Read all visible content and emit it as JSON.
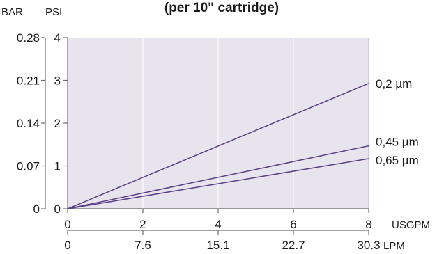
{
  "chart_data": {
    "type": "line",
    "title": "(per 10\" cartridge)",
    "x": [
      0,
      8
    ],
    "xlim": [
      0,
      8
    ],
    "ylim": [
      0,
      4
    ],
    "grid": true,
    "x_axis_primary": {
      "label": "USGPM",
      "ticks": [
        0,
        2,
        4,
        6,
        8
      ],
      "tick_labels": [
        "0",
        "2",
        "4",
        "6",
        "8"
      ]
    },
    "x_axis_secondary": {
      "label": "LPM",
      "tick_labels": [
        "0",
        "7.6",
        "15.1",
        "22.7",
        "30.3"
      ]
    },
    "y_axis_primary": {
      "label": "PSI",
      "ticks": [
        0,
        1,
        2,
        3,
        4
      ],
      "tick_labels": [
        "0",
        "1",
        "2",
        "3",
        "4"
      ]
    },
    "y_axis_secondary": {
      "label": "BAR",
      "tick_labels": [
        "0",
        "0.07",
        "0.14",
        "0.21",
        "0.28"
      ]
    },
    "series": [
      {
        "name": "0,2 µm",
        "x": [
          0,
          8
        ],
        "values": [
          0,
          2.93
        ]
      },
      {
        "name": "0,45 µm",
        "x": [
          0,
          8
        ],
        "values": [
          0,
          1.47
        ]
      },
      {
        "name": "0,65 µm",
        "x": [
          0,
          8
        ],
        "values": [
          0,
          1.17
        ]
      }
    ],
    "colors": {
      "plot_background": "#e8e4ee",
      "line": "#5b3f86",
      "grid": "#ffffff",
      "axis": "#6b6b6b"
    }
  }
}
